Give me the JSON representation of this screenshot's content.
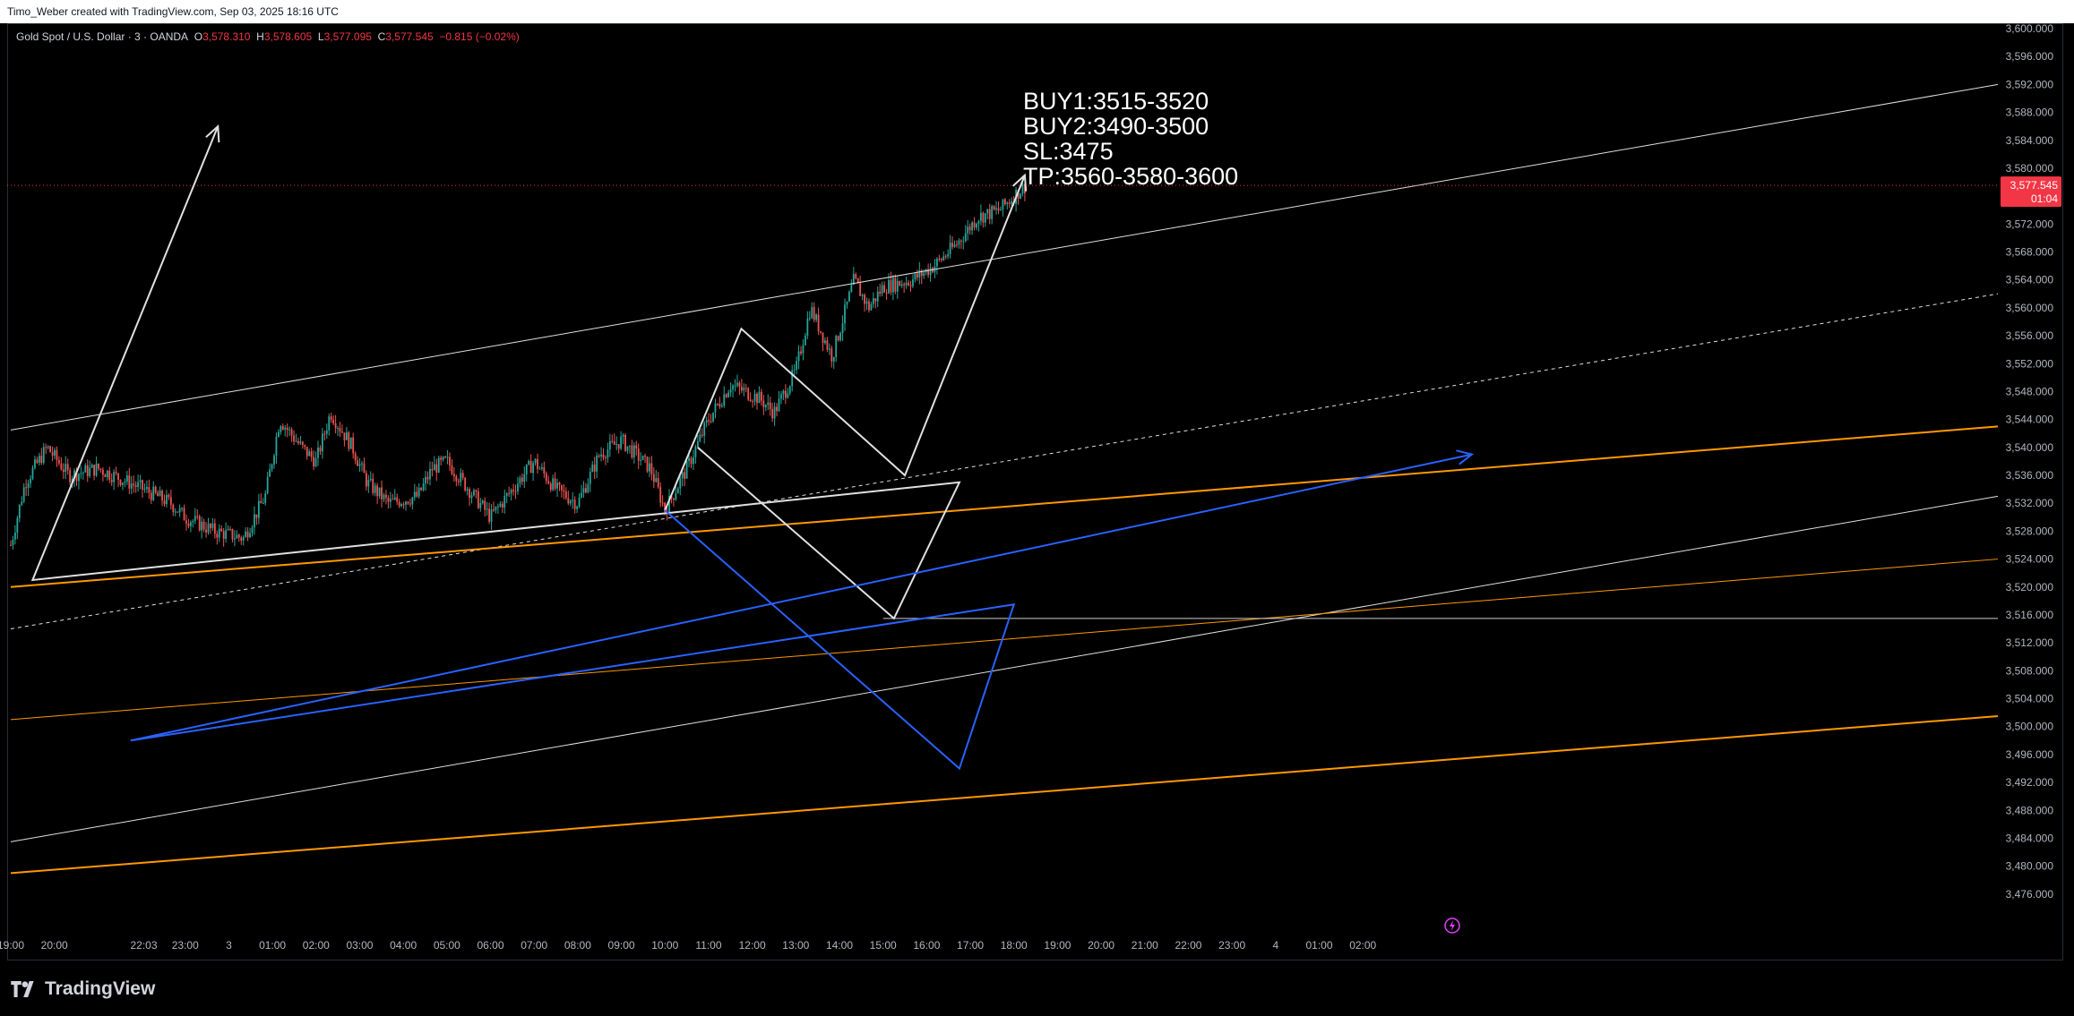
{
  "header": {
    "attribution": "Timo_Weber created with TradingView.com, Sep 03, 2025 18:16 UTC"
  },
  "symbol_bar": {
    "name": "Gold Spot / U.S. Dollar · 3 · OANDA",
    "o_label": "O",
    "o_value": "3,578.310",
    "h_label": "H",
    "h_value": "3,578.605",
    "l_label": "L",
    "l_value": "3,577.095",
    "c_label": "C",
    "c_value": "3,577.545",
    "change": "−0.815 (−0.02%)"
  },
  "annotation": {
    "lines": [
      "BUY1:3515-3520",
      "BUY2:3490-3500",
      "SL:3475",
      "TP:3560-3580-3600"
    ]
  },
  "price_label": {
    "value": "3,577.545",
    "countdown": "01:04"
  },
  "footer": {
    "brand": "TradingView"
  },
  "colors": {
    "background": "#000000",
    "up": "#26a69a",
    "down": "#ef5350",
    "orange": "#ff9800",
    "blue": "#2962ff",
    "white": "#ffffff",
    "price_tag": "#f23645"
  },
  "chart_data": {
    "type": "candlestick",
    "symbol": "Gold Spot / U.S. Dollar",
    "interval": "3",
    "exchange": "OANDA",
    "last_price": 3577.545,
    "ylim": [
      3472,
      3600
    ],
    "y_ticks": [
      "3,600.000",
      "3,596.000",
      "3,592.000",
      "3,588.000",
      "3,584.000",
      "3,580.000",
      "3,576.000",
      "3,572.000",
      "3,568.000",
      "3,564.000",
      "3,560.000",
      "3,556.000",
      "3,552.000",
      "3,548.000",
      "3,544.000",
      "3,540.000",
      "3,536.000",
      "3,532.000",
      "3,528.000",
      "3,524.000",
      "3,520.000",
      "3,516.000",
      "3,512.000",
      "3,508.000",
      "3,504.000",
      "3,500.000",
      "3,496.000",
      "3,492.000",
      "3,488.000",
      "3,484.000",
      "3,480.000",
      "3,476.000"
    ],
    "x_ticks": [
      "19:00",
      "20:00",
      "22:03",
      "23:00",
      "3",
      "01:00",
      "02:00",
      "03:00",
      "04:00",
      "05:00",
      "06:00",
      "07:00",
      "08:00",
      "09:00",
      "10:00",
      "11:00",
      "12:00",
      "13:00",
      "14:00",
      "15:00",
      "16:00",
      "17:00",
      "18:00",
      "19:00",
      "20:00",
      "21:00",
      "22:00",
      "23:00",
      "4",
      "01:00",
      "02:00"
    ],
    "price_path": [
      [
        "19:00",
        3526
      ],
      [
        "19:20",
        3535
      ],
      [
        "19:50",
        3540
      ],
      [
        "20:20",
        3536
      ],
      [
        "21:00",
        3537
      ],
      [
        "22:03",
        3534
      ],
      [
        "22:40",
        3532
      ],
      [
        "23:00",
        3530
      ],
      [
        "23:40",
        3528
      ],
      [
        "0:20",
        3527
      ],
      [
        "0:50",
        3533
      ],
      [
        "1:10",
        3544
      ],
      [
        "1:40",
        3540
      ],
      [
        "2:00",
        3538
      ],
      [
        "2:20",
        3545
      ],
      [
        "2:50",
        3540
      ],
      [
        "3:10",
        3535
      ],
      [
        "3:40",
        3532
      ],
      [
        "4:20",
        3533
      ],
      [
        "4:40",
        3537
      ],
      [
        "5:00",
        3538
      ],
      [
        "5:30",
        3534
      ],
      [
        "6:00",
        3530
      ],
      [
        "6:30",
        3534
      ],
      [
        "7:00",
        3538
      ],
      [
        "7:30",
        3534
      ],
      [
        "8:00",
        3532
      ],
      [
        "8:30",
        3539
      ],
      [
        "9:00",
        3541
      ],
      [
        "9:40",
        3537
      ],
      [
        "10:00",
        3531
      ],
      [
        "10:30",
        3537
      ],
      [
        "11:00",
        3544
      ],
      [
        "11:30",
        3549
      ],
      [
        "12:10",
        3547
      ],
      [
        "12:30",
        3545
      ],
      [
        "13:00",
        3551
      ],
      [
        "13:20",
        3560
      ],
      [
        "13:50",
        3553
      ],
      [
        "14:20",
        3564
      ],
      [
        "14:40",
        3560
      ],
      [
        "15:00",
        3563
      ],
      [
        "15:40",
        3564
      ],
      [
        "16:10",
        3566
      ],
      [
        "16:40",
        3569
      ],
      [
        "17:10",
        3573
      ],
      [
        "17:40",
        3574
      ],
      [
        "18:10",
        3577
      ],
      [
        "18:16",
        3577.5
      ]
    ],
    "horizontal_lines": [
      {
        "price": 3515.5,
        "from": "15:00",
        "to": "end"
      },
      {
        "price": 3577.545,
        "style": "dotted"
      }
    ],
    "trend_lines": [
      {
        "color": "white",
        "points": [
          [
            "18:45",
            3542.5
          ],
          [
            "end",
            3592
          ]
        ]
      },
      {
        "color": "white",
        "points": [
          [
            "18:45",
            3483.5
          ],
          [
            "end",
            3533
          ]
        ]
      },
      {
        "color": "white",
        "style": "dashed",
        "points": [
          [
            "18:45",
            3514
          ],
          [
            "end",
            3562
          ]
        ]
      },
      {
        "color": "orange",
        "points": [
          [
            "18:45",
            3520
          ],
          [
            "end",
            3543
          ]
        ]
      },
      {
        "color": "orange",
        "points": [
          [
            "18:45",
            3501
          ],
          [
            "end",
            3524
          ]
        ]
      },
      {
        "color": "orange",
        "points": [
          [
            "18:45",
            3479
          ],
          [
            "end",
            3501.5
          ]
        ]
      }
    ],
    "projections": [
      {
        "color": "white",
        "points": [
          [
            "10:00",
            3531
          ],
          [
            "11:45",
            3557
          ],
          [
            "15:30",
            3536
          ],
          [
            "18:15",
            3579
          ]
        ]
      },
      {
        "color": "white",
        "points": [
          [
            "10:45",
            3540
          ],
          [
            "15:15",
            3515.5
          ],
          [
            "16:45",
            3535
          ],
          [
            "19:30",
            3521
          ],
          [
            "23:45",
            3586
          ]
        ]
      },
      {
        "color": "blue",
        "points": [
          [
            "10:00",
            3531
          ],
          [
            "16:45",
            3494
          ],
          [
            "18:00",
            3517.5
          ],
          [
            "21:45",
            3498
          ],
          [
            "4:30",
            3539
          ]
        ]
      }
    ]
  }
}
